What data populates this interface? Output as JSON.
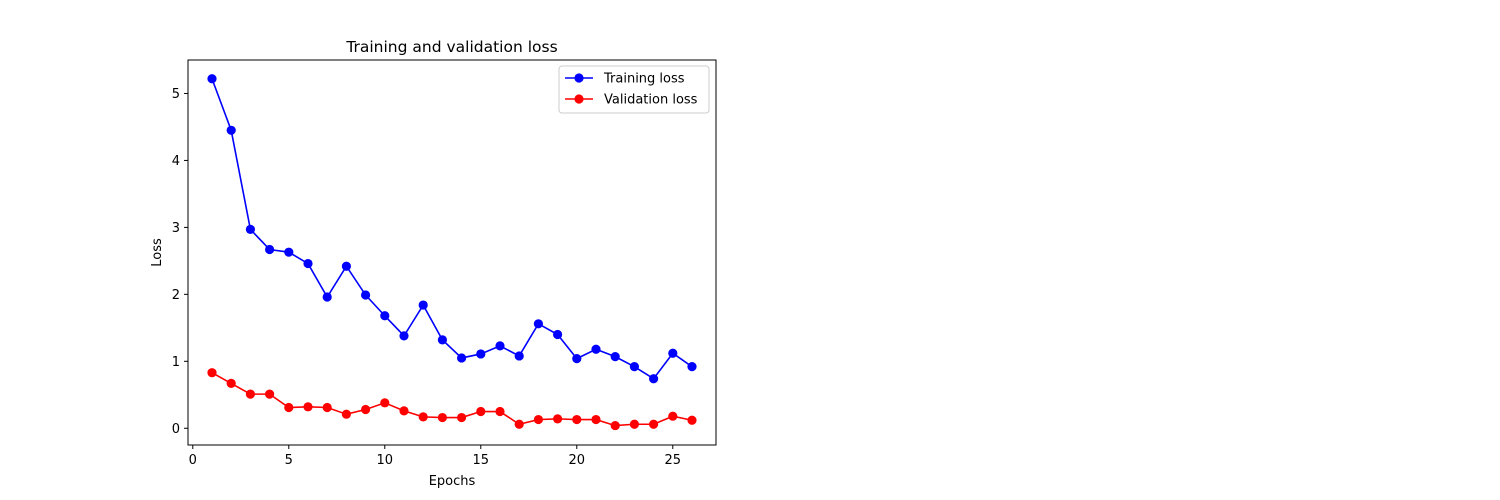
{
  "chart_data": {
    "type": "line",
    "title": "Training and validation loss",
    "xlabel": "Epochs",
    "ylabel": "Loss",
    "xlim": [
      -0.25,
      27.25
    ],
    "ylim": [
      -0.25,
      5.5
    ],
    "xticks": [
      0,
      5,
      10,
      15,
      20,
      25
    ],
    "yticks": [
      0,
      1,
      2,
      3,
      4,
      5
    ],
    "grid": false,
    "legend_position": "top-right",
    "x": [
      1,
      2,
      3,
      4,
      5,
      6,
      7,
      8,
      9,
      10,
      11,
      12,
      13,
      14,
      15,
      16,
      17,
      18,
      19,
      20,
      21,
      22,
      23,
      24,
      25,
      26
    ],
    "series": [
      {
        "name": "Training loss",
        "color": "#0000ff",
        "values": [
          5.22,
          4.45,
          2.97,
          2.67,
          2.63,
          2.46,
          1.96,
          2.42,
          1.99,
          1.68,
          1.38,
          1.84,
          1.32,
          1.05,
          1.11,
          1.23,
          1.08,
          1.56,
          1.4,
          1.04,
          1.18,
          1.07,
          0.92,
          0.74,
          1.12,
          0.92
        ]
      },
      {
        "name": "Validation loss",
        "color": "#ff0000",
        "values": [
          0.83,
          0.67,
          0.51,
          0.51,
          0.31,
          0.32,
          0.31,
          0.21,
          0.28,
          0.38,
          0.26,
          0.17,
          0.16,
          0.16,
          0.25,
          0.25,
          0.06,
          0.13,
          0.14,
          0.13,
          0.13,
          0.04,
          0.06,
          0.06,
          0.18,
          0.12
        ]
      }
    ]
  }
}
